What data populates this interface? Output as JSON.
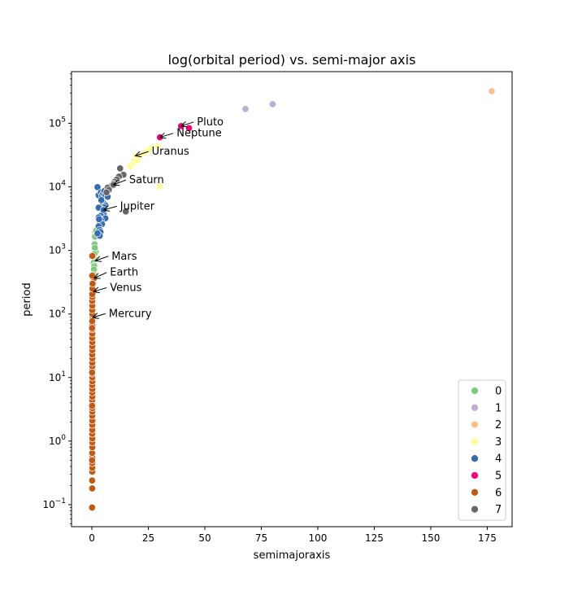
{
  "chart_data": {
    "type": "scatter",
    "title": "log(orbital period) vs. semi-major axis",
    "xlabel": "semimajoraxis",
    "ylabel": "period",
    "xlim": [
      -9,
      186
    ],
    "ylim": [
      0.045,
      650000
    ],
    "yscale": "log",
    "xticks": [
      0,
      25,
      50,
      75,
      100,
      125,
      150,
      175
    ],
    "yticks": [
      {
        "value": 0.1,
        "base": "10",
        "exp": "−1"
      },
      {
        "value": 1,
        "base": "10",
        "exp": "0"
      },
      {
        "value": 10,
        "base": "10",
        "exp": "1"
      },
      {
        "value": 100,
        "base": "10",
        "exp": "2"
      },
      {
        "value": 1000,
        "base": "10",
        "exp": "3"
      },
      {
        "value": 10000,
        "base": "10",
        "exp": "4"
      },
      {
        "value": 100000,
        "base": "10",
        "exp": "5"
      }
    ],
    "legend_placement": "lower-right",
    "series": [
      {
        "name": "0",
        "color": "#7fc97f",
        "points": [
          [
            1.5,
            1950
          ],
          [
            2.1,
            1850
          ],
          [
            1.2,
            1250
          ],
          [
            1.6,
            1050
          ],
          [
            1.7,
            950
          ],
          [
            1.3,
            1100
          ],
          [
            1.1,
            880
          ],
          [
            0.9,
            760
          ],
          [
            1.0,
            690
          ],
          [
            0.8,
            640
          ],
          [
            1.2,
            580
          ],
          [
            1.0,
            560
          ],
          [
            0.9,
            500
          ],
          [
            0.6,
            420
          ],
          [
            0.5,
            370
          ],
          [
            0.7,
            300
          ],
          [
            1.4,
            1650
          ],
          [
            1.9,
            2050
          ]
        ]
      },
      {
        "name": "1",
        "color": "#beaed4",
        "points": [
          [
            68,
            168000
          ],
          [
            80,
            200000
          ]
        ]
      },
      {
        "name": "2",
        "color": "#fdc086",
        "points": [
          [
            177,
            320000
          ]
        ]
      },
      {
        "name": "3",
        "color": "#ffff99",
        "points": [
          [
            17,
            21000
          ],
          [
            18.5,
            24000
          ],
          [
            19,
            27000
          ],
          [
            19.5,
            31000
          ],
          [
            20,
            26000
          ],
          [
            22,
            32000
          ],
          [
            24,
            36000
          ],
          [
            26,
            40000
          ],
          [
            30,
            10100
          ],
          [
            29,
            43000
          ]
        ]
      },
      {
        "name": "4",
        "color": "#386cb0",
        "points": [
          [
            2.5,
            9900
          ],
          [
            3.0,
            7400
          ],
          [
            4.0,
            8200
          ],
          [
            4.5,
            7100
          ],
          [
            5.0,
            7900
          ],
          [
            5.5,
            8600
          ],
          [
            6.0,
            7500
          ],
          [
            7.0,
            7000
          ],
          [
            5.0,
            5600
          ],
          [
            6.0,
            5100
          ],
          [
            5.5,
            4800
          ],
          [
            4.0,
            4500
          ],
          [
            3.0,
            4700
          ],
          [
            5.0,
            4100
          ],
          [
            5.2,
            3800
          ],
          [
            4.0,
            3500
          ],
          [
            3.0,
            3300
          ],
          [
            6.0,
            3200
          ],
          [
            4.0,
            3000
          ],
          [
            3.5,
            2800
          ],
          [
            4.5,
            2600
          ],
          [
            3.0,
            2400
          ],
          [
            3.5,
            2100
          ],
          [
            3.8,
            1950
          ],
          [
            3.5,
            1700
          ],
          [
            2.5,
            1850
          ],
          [
            5.2,
            4330
          ],
          [
            3.2,
            3100
          ],
          [
            4.2,
            6200
          ]
        ]
      },
      {
        "name": "5",
        "color": "#f0027f",
        "points": [
          [
            30.1,
            60190
          ],
          [
            39.5,
            90560
          ],
          [
            43,
            84000
          ]
        ]
      },
      {
        "name": "6",
        "color": "#bf5b17",
        "points": [
          [
            0.39,
            88
          ],
          [
            0.72,
            225
          ],
          [
            1.0,
            365
          ],
          [
            0.1,
            0.09
          ],
          [
            0.15,
            0.18
          ],
          [
            0.12,
            0.24
          ],
          [
            0.18,
            0.33
          ],
          [
            0.2,
            0.38
          ],
          [
            0.15,
            0.45
          ],
          [
            0.2,
            0.55
          ],
          [
            0.15,
            0.65
          ],
          [
            0.2,
            0.8
          ],
          [
            0.18,
            0.95
          ],
          [
            0.2,
            1.1
          ],
          [
            0.15,
            1.3
          ],
          [
            0.2,
            1.5
          ],
          [
            0.18,
            1.8
          ],
          [
            0.2,
            2.1
          ],
          [
            0.15,
            2.5
          ],
          [
            0.2,
            2.9
          ],
          [
            0.18,
            3.3
          ],
          [
            0.2,
            3.8
          ],
          [
            0.15,
            4.4
          ],
          [
            0.2,
            5.0
          ],
          [
            0.18,
            5.8
          ],
          [
            0.2,
            6.6
          ],
          [
            0.15,
            7.6
          ],
          [
            0.2,
            8.7
          ],
          [
            0.18,
            10
          ],
          [
            0.2,
            11.5
          ],
          [
            0.15,
            13
          ],
          [
            0.2,
            15
          ],
          [
            0.18,
            17
          ],
          [
            0.2,
            20
          ],
          [
            0.15,
            23
          ],
          [
            0.2,
            27
          ],
          [
            0.18,
            31
          ],
          [
            0.2,
            36
          ],
          [
            0.15,
            42
          ],
          [
            0.2,
            49
          ],
          [
            0.18,
            57
          ],
          [
            0.2,
            66
          ],
          [
            0.15,
            77
          ],
          [
            0.2,
            100
          ],
          [
            0.18,
            115
          ],
          [
            0.2,
            135
          ],
          [
            0.15,
            160
          ],
          [
            0.2,
            185
          ],
          [
            0.18,
            205
          ],
          [
            0.25,
            250
          ],
          [
            0.3,
            300
          ],
          [
            0.15,
            400
          ],
          [
            0.2,
            820
          ],
          [
            0.1,
            3.6
          ],
          [
            0.1,
            0.5
          ],
          [
            0.1,
            12
          ],
          [
            0.1,
            60
          ]
        ]
      },
      {
        "name": "7",
        "color": "#666666",
        "points": [
          [
            12.5,
            19500
          ],
          [
            14,
            15500
          ],
          [
            12,
            14500
          ],
          [
            11,
            13000
          ],
          [
            10,
            12000
          ],
          [
            9.5,
            11200
          ],
          [
            8.5,
            10300
          ],
          [
            7,
            9700
          ],
          [
            7.5,
            9000
          ],
          [
            6.5,
            8200
          ],
          [
            15,
            4100
          ],
          [
            9.54,
            10759
          ]
        ]
      }
    ],
    "annotations": [
      {
        "text": "Mercury",
        "x": 0.39,
        "y": 88,
        "tx": 7.5,
        "ty": 90
      },
      {
        "text": "Venus",
        "x": 0.72,
        "y": 225,
        "tx": 8,
        "ty": 230
      },
      {
        "text": "Earth",
        "x": 1.0,
        "y": 365,
        "tx": 8,
        "ty": 400
      },
      {
        "text": "Mars",
        "x": 1.52,
        "y": 687,
        "tx": 8.7,
        "ty": 720
      },
      {
        "text": "Jupiter",
        "x": 5.2,
        "y": 4330,
        "tx": 12.5,
        "ty": 4400
      },
      {
        "text": "Saturn",
        "x": 9.54,
        "y": 10759,
        "tx": 16.5,
        "ty": 11400
      },
      {
        "text": "Uranus",
        "x": 19.2,
        "y": 30687,
        "tx": 26.5,
        "ty": 32000
      },
      {
        "text": "Neptune",
        "x": 30.1,
        "y": 60190,
        "tx": 37.5,
        "ty": 62000
      },
      {
        "text": "Pluto",
        "x": 39.5,
        "y": 90560,
        "tx": 46.5,
        "ty": 93000
      }
    ]
  }
}
